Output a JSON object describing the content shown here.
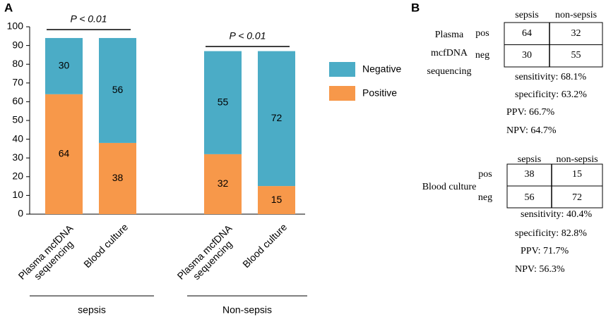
{
  "panel_labels": [
    "A",
    "B"
  ],
  "chart_data": {
    "type": "stacked_bar",
    "categories": [
      "Plasma mcfDNA sequencing",
      "Blood culture",
      "Plasma mcfDNA sequencing",
      "Blood culture"
    ],
    "groups": [
      "sepsis",
      "Non-sepsis"
    ],
    "series": [
      {
        "name": "Positive",
        "color": "#f7984a",
        "values": [
          64,
          38,
          32,
          15
        ]
      },
      {
        "name": "Negative",
        "color": "#4bacc6",
        "values": [
          30,
          56,
          55,
          72
        ]
      }
    ],
    "ylim": [
      0,
      100
    ],
    "yticks": [
      0,
      10,
      20,
      30,
      40,
      50,
      60,
      70,
      80,
      90,
      100
    ],
    "annotations": [
      "P < 0.01",
      "P < 0.01"
    ],
    "legend": "right"
  },
  "tables": [
    {
      "title": "Plasma mcfDNA sequencing",
      "columns": [
        "sepsis",
        "non-sepsis"
      ],
      "rows": [
        {
          "label": "pos",
          "cells": [
            "64",
            "32"
          ]
        },
        {
          "label": "neg",
          "cells": [
            "30",
            "55"
          ]
        }
      ],
      "stats": [
        "sensitivity: 68.1%",
        "specificity: 63.2%",
        "PPV: 66.7%",
        "NPV: 64.7%"
      ]
    },
    {
      "title": "Blood culture",
      "columns": [
        "sepsis",
        "non-sepsis"
      ],
      "rows": [
        {
          "label": "pos",
          "cells": [
            "38",
            "15"
          ]
        },
        {
          "label": "neg",
          "cells": [
            "56",
            "72"
          ]
        }
      ],
      "stats": [
        "sensitivity: 40.4%",
        "specificity: 82.8%",
        "PPV: 71.7%",
        "NPV: 56.3%"
      ]
    }
  ]
}
